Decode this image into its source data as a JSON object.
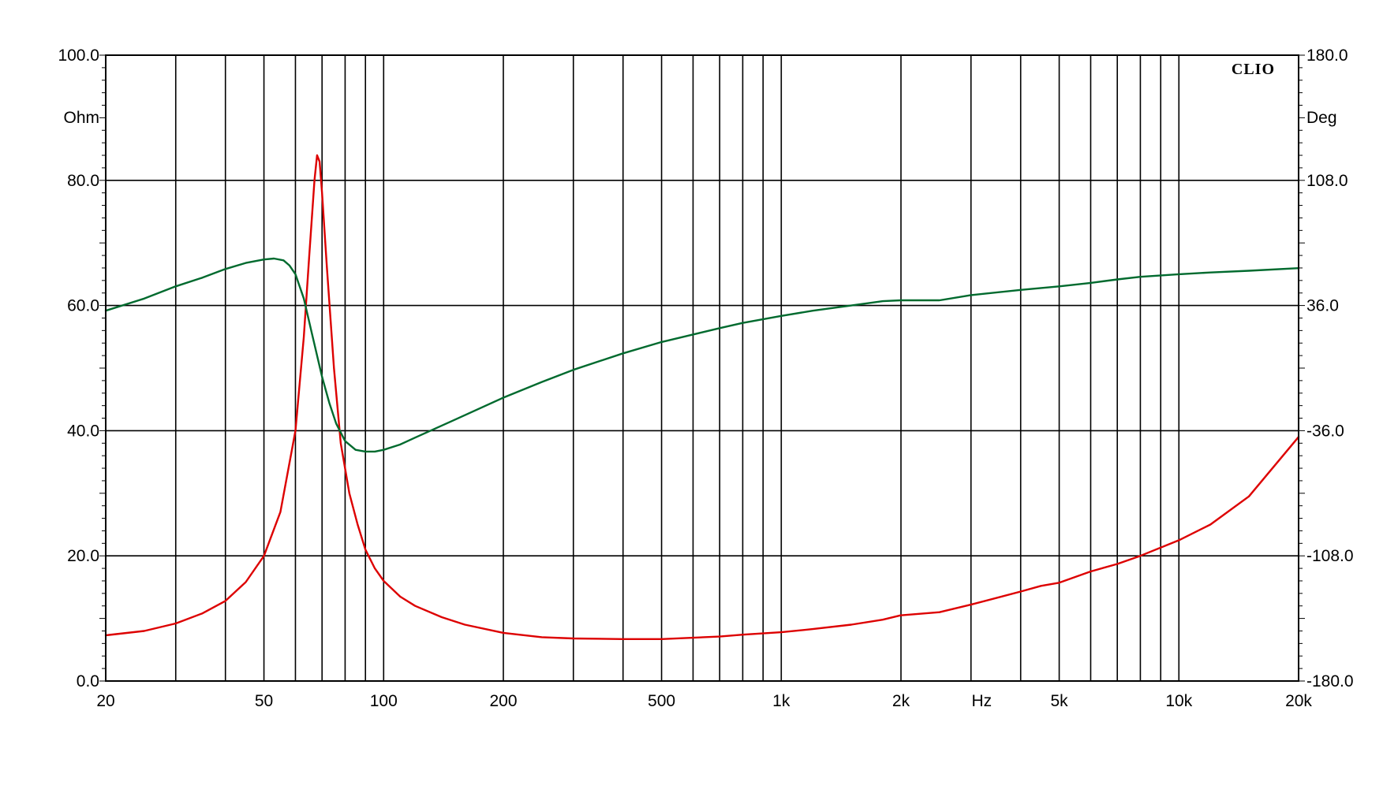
{
  "chart_data": {
    "type": "line",
    "title": "",
    "brand_label": "CLIO",
    "x_unit_label": "Hz",
    "left_unit_label": "Ohm",
    "right_unit_label": "Deg",
    "x_scale": "log",
    "xlim": [
      20,
      20000
    ],
    "ylim_left": [
      0,
      100
    ],
    "ylim_right": [
      -180,
      180
    ],
    "grid": true,
    "x_grid_lines": [
      30,
      40,
      50,
      60,
      70,
      80,
      90,
      100,
      200,
      300,
      400,
      500,
      600,
      700,
      800,
      900,
      1000,
      2000,
      3000,
      4000,
      5000,
      6000,
      7000,
      8000,
      9000,
      10000,
      20000
    ],
    "x_ticks": [
      {
        "value": 20,
        "label": "20"
      },
      {
        "value": 50,
        "label": "50"
      },
      {
        "value": 100,
        "label": "100"
      },
      {
        "value": 200,
        "label": "200"
      },
      {
        "value": 500,
        "label": "500"
      },
      {
        "value": 1000,
        "label": "1k"
      },
      {
        "value": 2000,
        "label": "2k"
      },
      {
        "value": 5000,
        "label": "5k"
      },
      {
        "value": 10000,
        "label": "10k"
      },
      {
        "value": 20000,
        "label": "20k"
      }
    ],
    "y_ticks_left": [
      {
        "value": 0,
        "label": "0.0"
      },
      {
        "value": 20,
        "label": "20.0"
      },
      {
        "value": 40,
        "label": "40.0"
      },
      {
        "value": 60,
        "label": "60.0"
      },
      {
        "value": 80,
        "label": "80.0"
      },
      {
        "value": 100,
        "label": "100.0"
      }
    ],
    "y_ticks_right": [
      {
        "value": -180,
        "label": "-180.0"
      },
      {
        "value": -108,
        "label": "-108.0"
      },
      {
        "value": -36,
        "label": "-36.0"
      },
      {
        "value": 36,
        "label": "36.0"
      },
      {
        "value": 108,
        "label": "108.0"
      },
      {
        "value": 180,
        "label": "180.0"
      }
    ],
    "series": [
      {
        "axis": "left",
        "color": "#dd0000",
        "points": [
          [
            20,
            7.3
          ],
          [
            25,
            8.0
          ],
          [
            30,
            9.2
          ],
          [
            35,
            10.8
          ],
          [
            40,
            12.8
          ],
          [
            45,
            15.8
          ],
          [
            50,
            20.0
          ],
          [
            55,
            27.0
          ],
          [
            60,
            40.0
          ],
          [
            63,
            55.0
          ],
          [
            65,
            68.0
          ],
          [
            67,
            80.0
          ],
          [
            68,
            84.0
          ],
          [
            69,
            83.0
          ],
          [
            70,
            78.0
          ],
          [
            72,
            66.0
          ],
          [
            75,
            50.0
          ],
          [
            78,
            38.0
          ],
          [
            82,
            30.0
          ],
          [
            86,
            25.0
          ],
          [
            90,
            21.0
          ],
          [
            95,
            18.0
          ],
          [
            100,
            16.0
          ],
          [
            110,
            13.5
          ],
          [
            120,
            12.0
          ],
          [
            140,
            10.2
          ],
          [
            160,
            9.0
          ],
          [
            200,
            7.7
          ],
          [
            250,
            7.0
          ],
          [
            300,
            6.8
          ],
          [
            400,
            6.7
          ],
          [
            500,
            6.7
          ],
          [
            700,
            7.1
          ],
          [
            800,
            7.4
          ],
          [
            1000,
            7.8
          ],
          [
            1200,
            8.3
          ],
          [
            1500,
            9.0
          ],
          [
            1800,
            9.8
          ],
          [
            2000,
            10.5
          ],
          [
            2500,
            11.0
          ],
          [
            3000,
            12.2
          ],
          [
            4000,
            14.3
          ],
          [
            4500,
            15.2
          ],
          [
            5000,
            15.7
          ],
          [
            6000,
            17.5
          ],
          [
            7000,
            18.7
          ],
          [
            8000,
            20.0
          ],
          [
            10000,
            22.5
          ],
          [
            12000,
            25.0
          ],
          [
            15000,
            29.5
          ],
          [
            20000,
            39.0
          ]
        ]
      },
      {
        "axis": "right",
        "color": "#006a2e",
        "points": [
          [
            20,
            33.0
          ],
          [
            25,
            40.0
          ],
          [
            30,
            47.0
          ],
          [
            35,
            52.0
          ],
          [
            40,
            57.0
          ],
          [
            45,
            60.5
          ],
          [
            50,
            62.5
          ],
          [
            53,
            63.0
          ],
          [
            56,
            62.0
          ],
          [
            58,
            59.0
          ],
          [
            60,
            54.0
          ],
          [
            63,
            40.0
          ],
          [
            66,
            20.0
          ],
          [
            70,
            -5.0
          ],
          [
            73,
            -20.0
          ],
          [
            76,
            -32.0
          ],
          [
            80,
            -42.0
          ],
          [
            85,
            -47.0
          ],
          [
            90,
            -48.0
          ],
          [
            95,
            -48.0
          ],
          [
            100,
            -47.0
          ],
          [
            110,
            -44.0
          ],
          [
            120,
            -40.0
          ],
          [
            150,
            -30.0
          ],
          [
            200,
            -17.0
          ],
          [
            250,
            -8.0
          ],
          [
            300,
            -1.0
          ],
          [
            400,
            8.5
          ],
          [
            500,
            15.0
          ],
          [
            700,
            23.0
          ],
          [
            800,
            26.0
          ],
          [
            1000,
            30.0
          ],
          [
            1200,
            33.0
          ],
          [
            1500,
            36.0
          ],
          [
            1800,
            38.5
          ],
          [
            2000,
            39.0
          ],
          [
            2500,
            39.0
          ],
          [
            3000,
            42.0
          ],
          [
            4000,
            45.0
          ],
          [
            5000,
            47.0
          ],
          [
            6000,
            49.0
          ],
          [
            7000,
            51.0
          ],
          [
            8000,
            52.5
          ],
          [
            10000,
            54.0
          ],
          [
            12000,
            55.0
          ],
          [
            15000,
            56.0
          ],
          [
            20000,
            57.5
          ]
        ]
      }
    ]
  }
}
